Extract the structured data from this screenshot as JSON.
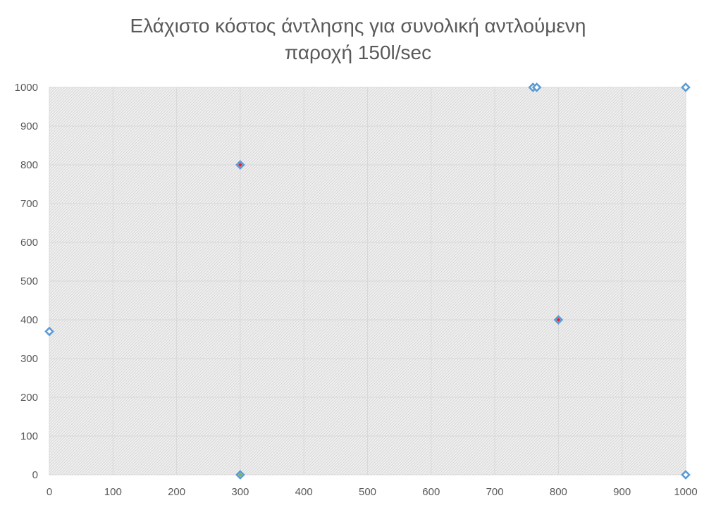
{
  "chart_data": {
    "type": "scatter",
    "title_lines": [
      "Ελάχιστο κόστος άντλησης για συνολική αντλούμενη",
      "παροχή 150l/sec"
    ],
    "xlabel": "",
    "ylabel": "",
    "xlim": [
      0,
      1000
    ],
    "ylim": [
      0,
      1000
    ],
    "x_ticks": [
      0,
      100,
      200,
      300,
      400,
      500,
      600,
      700,
      800,
      900,
      1000
    ],
    "y_ticks": [
      0,
      100,
      200,
      300,
      400,
      500,
      600,
      700,
      800,
      900,
      1000
    ],
    "grid": true,
    "legend": "none",
    "plot_background": "hatched light gray",
    "series": [
      {
        "marker": "hollow-diamond",
        "color": "#5B9BD5",
        "points": [
          {
            "x": 0,
            "y": 370
          },
          {
            "x": 300,
            "y": 0
          },
          {
            "x": 300,
            "y": 800
          },
          {
            "x": 760,
            "y": 1000
          },
          {
            "x": 766,
            "y": 1000
          },
          {
            "x": 800,
            "y": 400
          },
          {
            "x": 1000,
            "y": 1000
          },
          {
            "x": 1000,
            "y": 0
          }
        ]
      },
      {
        "marker": "small-diamond",
        "color": "#E0262B",
        "points": [
          {
            "x": 300,
            "y": 800
          },
          {
            "x": 800,
            "y": 400
          }
        ]
      },
      {
        "marker": "small-diamond",
        "color": "#7AB648",
        "points": [
          {
            "x": 300,
            "y": 0
          }
        ]
      }
    ]
  }
}
